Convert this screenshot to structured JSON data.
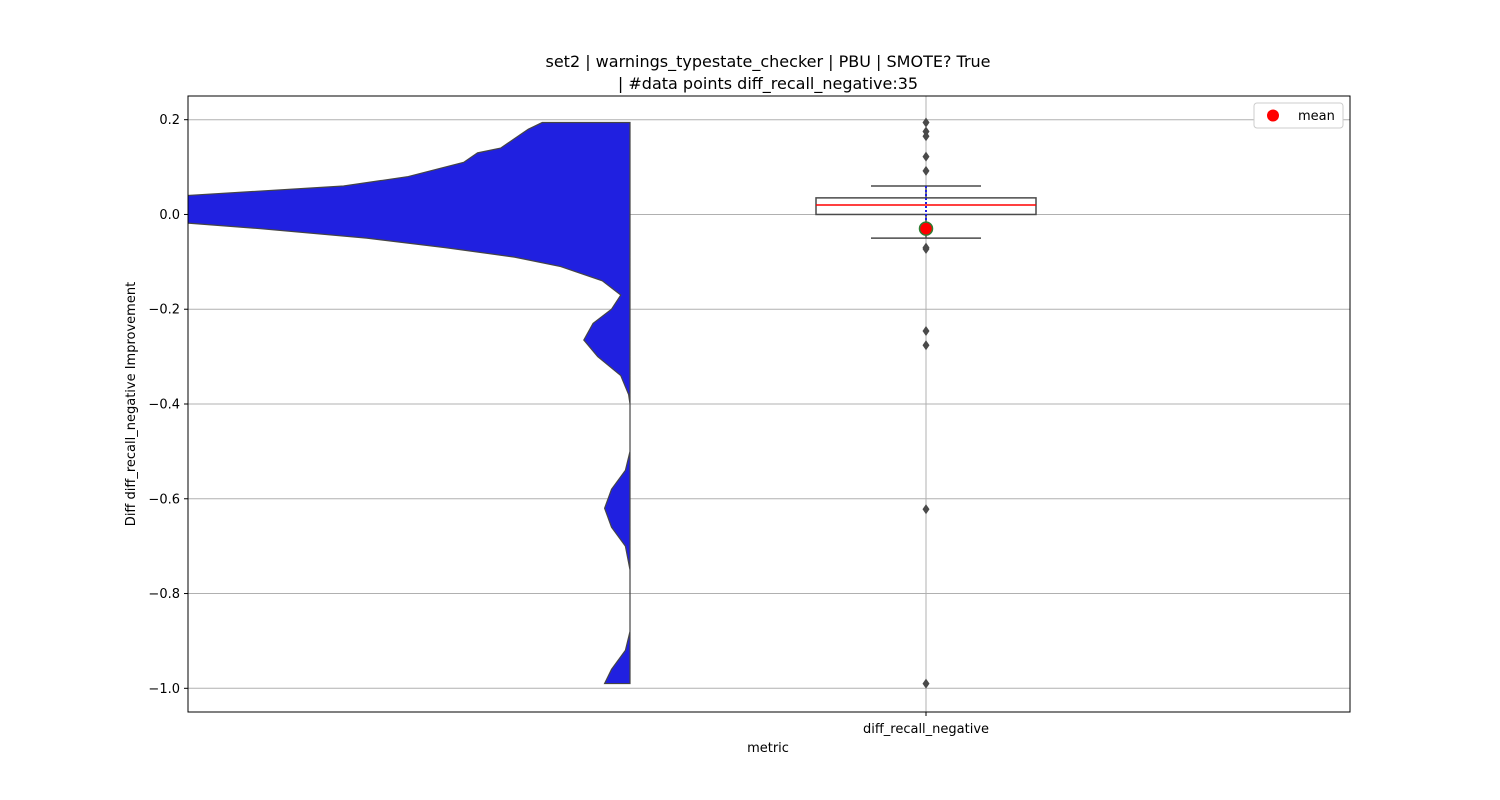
{
  "chart_data": {
    "type": "violin+box",
    "title_line1": "set2 | warnings_typestate_checker | PBU | SMOTE? True",
    "title_line2": "| #data points diff_recall_negative:35",
    "xlabel": "metric",
    "ylabel": "Diff diff_recall_negative Improvement",
    "category": "diff_recall_negative",
    "yticks": [
      0.2,
      0.0,
      -0.2,
      -0.4,
      -0.6,
      -0.8,
      -1.0
    ],
    "ytick_labels": [
      "0.2",
      "0.0",
      "−0.2",
      "−0.4",
      "−0.6",
      "−0.8",
      "−1.0"
    ],
    "ylim": [
      -1.05,
      0.25
    ],
    "grid": true,
    "legend": {
      "label": "mean",
      "placement": "top-right"
    },
    "violin": {
      "side": "left-half",
      "color": "#2020e0",
      "y_range": [
        -0.99,
        0.194
      ],
      "density_profile": [
        [
          0.194,
          0.19
        ],
        [
          0.18,
          0.22
        ],
        [
          0.16,
          0.25
        ],
        [
          0.14,
          0.28
        ],
        [
          0.13,
          0.33
        ],
        [
          0.11,
          0.36
        ],
        [
          0.1,
          0.4
        ],
        [
          0.08,
          0.48
        ],
        [
          0.06,
          0.62
        ],
        [
          0.04,
          0.96
        ],
        [
          0.02,
          1.0
        ],
        [
          0.0,
          1.0
        ],
        [
          -0.015,
          1.0
        ],
        [
          -0.03,
          0.8
        ],
        [
          -0.05,
          0.57
        ],
        [
          -0.07,
          0.4
        ],
        [
          -0.09,
          0.25
        ],
        [
          -0.11,
          0.15
        ],
        [
          -0.14,
          0.06
        ],
        [
          -0.17,
          0.02
        ],
        [
          -0.2,
          0.04
        ],
        [
          -0.23,
          0.08
        ],
        [
          -0.265,
          0.1
        ],
        [
          -0.3,
          0.07
        ],
        [
          -0.34,
          0.02
        ],
        [
          -0.38,
          0.003
        ],
        [
          -0.4,
          0.0
        ],
        [
          -0.5,
          0.0
        ],
        [
          -0.54,
          0.01
        ],
        [
          -0.58,
          0.04
        ],
        [
          -0.62,
          0.055
        ],
        [
          -0.66,
          0.04
        ],
        [
          -0.7,
          0.01
        ],
        [
          -0.75,
          0.0
        ],
        [
          -0.88,
          0.0
        ],
        [
          -0.92,
          0.01
        ],
        [
          -0.96,
          0.04
        ],
        [
          -0.99,
          0.055
        ]
      ]
    },
    "box": {
      "q1": 0.0,
      "median": 0.02,
      "q3": 0.035,
      "whisker_low": -0.05,
      "whisker_high": 0.06,
      "mean": -0.03,
      "outliers": [
        0.194,
        0.175,
        0.165,
        0.122,
        0.092,
        -0.07,
        -0.073,
        -0.246,
        -0.276,
        -0.622,
        -0.99
      ]
    },
    "colors": {
      "violin": "#2020e0",
      "median": "#ff0000",
      "mean": "#ff0000",
      "box_edge": "#4a4a4a",
      "mean_edge": "#2e7d32"
    }
  }
}
